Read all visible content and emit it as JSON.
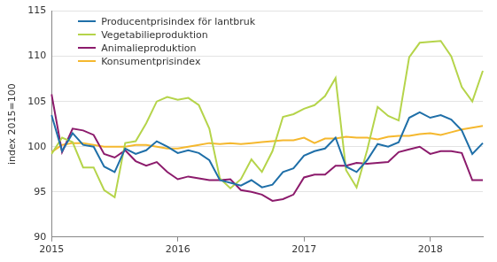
{
  "chart_data": {
    "type": "line",
    "y_label": "index 2015=100",
    "categories": [
      "2015",
      null,
      null,
      null,
      null,
      null,
      null,
      null,
      null,
      null,
      null,
      null,
      "2016",
      null,
      null,
      null,
      null,
      null,
      null,
      null,
      null,
      null,
      null,
      null,
      "2017",
      null,
      null,
      null,
      null,
      null,
      null,
      null,
      null,
      null,
      null,
      null,
      "2018",
      null,
      null,
      null,
      null,
      null
    ],
    "series": [
      {
        "name": "Producentprisindex för lantbruk",
        "color": "#1f6fa8",
        "values": [
          103.5,
          99.5,
          101.5,
          100.2,
          100.0,
          97.8,
          97.2,
          99.8,
          99.2,
          99.6,
          100.6,
          100.0,
          99.3,
          99.6,
          99.3,
          98.5,
          96.3,
          96.0,
          95.7,
          96.3,
          95.5,
          95.8,
          97.2,
          97.6,
          99.0,
          99.5,
          99.8,
          101.0,
          97.8,
          97.2,
          98.5,
          100.3,
          100.0,
          100.5,
          103.2,
          103.8,
          103.2,
          103.5,
          103.0,
          101.8,
          99.2,
          100.4
        ]
      },
      {
        "name": "Vegetabilieproduktion",
        "color": "#b5d44a",
        "values": [
          99.2,
          101.0,
          100.5,
          97.7,
          97.7,
          95.2,
          94.4,
          100.4,
          100.6,
          102.6,
          105.0,
          105.5,
          105.2,
          105.4,
          104.6,
          102.0,
          96.5,
          95.4,
          96.4,
          98.6,
          97.2,
          99.5,
          103.3,
          103.6,
          104.2,
          104.6,
          105.6,
          107.6,
          97.4,
          95.5,
          99.6,
          104.4,
          103.4,
          102.9,
          109.9,
          111.5,
          111.6,
          111.7,
          110.0,
          106.6,
          105.0,
          108.4
        ]
      },
      {
        "name": "Animalieproduktion",
        "color": "#8c1b6c",
        "values": [
          105.8,
          99.4,
          102.0,
          101.8,
          101.3,
          99.2,
          98.8,
          99.6,
          98.4,
          97.9,
          98.3,
          97.2,
          96.4,
          96.7,
          96.5,
          96.3,
          96.3,
          96.4,
          95.2,
          95.0,
          94.7,
          94.0,
          94.2,
          94.7,
          96.6,
          96.9,
          96.9,
          97.9,
          97.9,
          98.2,
          98.1,
          98.2,
          98.3,
          99.4,
          99.7,
          100.0,
          99.2,
          99.5,
          99.5,
          99.3,
          96.3,
          96.3
        ]
      },
      {
        "name": "Konsumentprisindex",
        "color": "#f5b82e",
        "values": [
          99.4,
          100.2,
          100.4,
          100.4,
          100.2,
          100.0,
          100.0,
          100.0,
          100.2,
          100.2,
          100.0,
          99.8,
          99.8,
          100.0,
          100.2,
          100.4,
          100.3,
          100.4,
          100.3,
          100.4,
          100.5,
          100.6,
          100.7,
          100.7,
          101.0,
          100.4,
          100.9,
          100.9,
          101.1,
          101.0,
          101.0,
          100.8,
          101.1,
          101.2,
          101.2,
          101.4,
          101.5,
          101.3,
          101.6,
          101.9,
          102.1,
          102.3
        ]
      }
    ],
    "ylim": [
      90,
      115
    ],
    "yticks": [
      90,
      95,
      100,
      105,
      110,
      115
    ],
    "grid": true,
    "legend": "upper left"
  }
}
